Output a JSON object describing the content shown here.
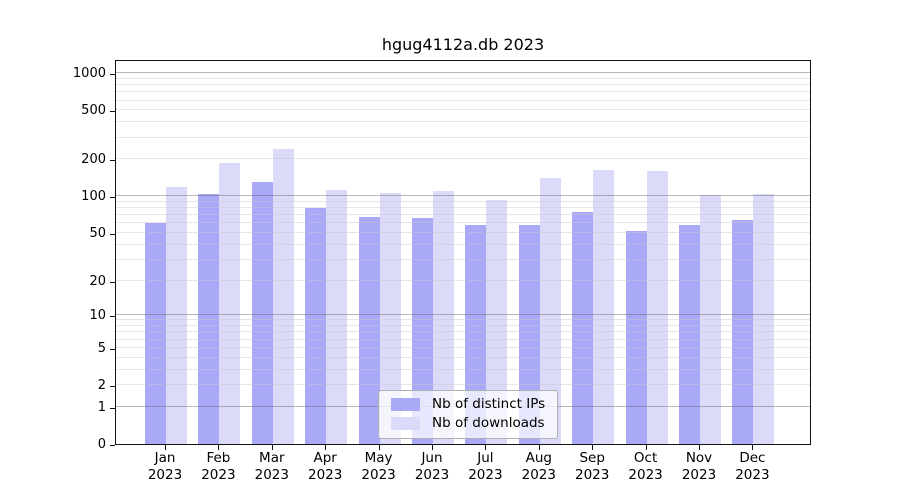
{
  "title": "hgug4112a.db 2023",
  "colors": {
    "ips_bar": "#a9a9f7",
    "downloads_bar": "#dbdbf9",
    "major_grid": "rgba(100,100,100,0.45)",
    "minor_grid": "rgba(200,200,200,0.45)",
    "axis": "#111111"
  },
  "legend": {
    "items": [
      {
        "label": "Nb of distinct IPs",
        "color_key": "ips_bar"
      },
      {
        "label": "Nb of downloads",
        "color_key": "downloads_bar"
      }
    ]
  },
  "chart_data": {
    "type": "bar",
    "title": "hgug4112a.db 2023",
    "categories": [
      "Jan",
      "Feb",
      "Mar",
      "Apr",
      "May",
      "Jun",
      "Jul",
      "Aug",
      "Sep",
      "Oct",
      "Nov",
      "Dec"
    ],
    "year": "2023",
    "series": [
      {
        "name": "Nb of distinct IPs",
        "values": [
          60,
          105,
          130,
          80,
          68,
          66,
          58,
          58,
          75,
          52,
          58,
          64
        ]
      },
      {
        "name": "Nb of downloads",
        "values": [
          120,
          185,
          242,
          112,
          107,
          110,
          93,
          140,
          165,
          160,
          102,
          104
        ]
      }
    ],
    "yscale": "log1p",
    "ylim": [
      0,
      1300
    ],
    "yticks": [
      0,
      1,
      2,
      5,
      10,
      20,
      50,
      100,
      200,
      500,
      1000
    ],
    "major_grid_values": [
      1,
      10,
      100,
      1000
    ],
    "grid": true,
    "legend_position": "inside-bottom-center"
  }
}
